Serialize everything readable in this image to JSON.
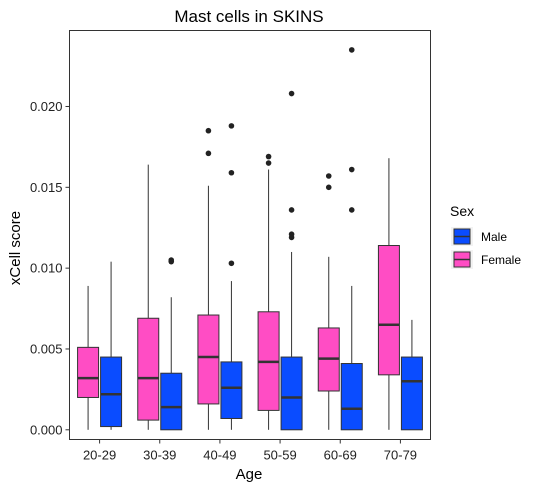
{
  "chart_data": {
    "type": "boxplot",
    "title": "Mast cells in SKINS",
    "xlabel": "Age",
    "ylabel": "xCell score",
    "categories": [
      "20-29",
      "30-39",
      "40-49",
      "50-59",
      "60-69",
      "70-79"
    ],
    "ylim": [
      -0.0006,
      0.0247
    ],
    "yticks": [
      0.0,
      0.005,
      0.01,
      0.015,
      0.02
    ],
    "ytick_labels": [
      "0.000",
      "0.005",
      "0.010",
      "0.015",
      "0.020"
    ],
    "legend": {
      "title": "Sex",
      "position": "right"
    },
    "grid": false,
    "series": [
      {
        "name": "Female",
        "color": "#FF4DC4",
        "boxes": [
          {
            "category": "20-29",
            "min": 0.0,
            "q1": 0.002,
            "median": 0.0032,
            "q3": 0.0051,
            "max": 0.0089,
            "outliers": []
          },
          {
            "category": "30-39",
            "min": 0.0,
            "q1": 0.0006,
            "median": 0.0032,
            "q3": 0.0069,
            "max": 0.0164,
            "outliers": []
          },
          {
            "category": "40-49",
            "min": 0.0,
            "q1": 0.0016,
            "median": 0.0045,
            "q3": 0.0071,
            "max": 0.0151,
            "outliers": [
              0.0171,
              0.0185
            ]
          },
          {
            "category": "50-59",
            "min": 0.0,
            "q1": 0.0012,
            "median": 0.0042,
            "q3": 0.0073,
            "max": 0.0161,
            "outliers": [
              0.0165,
              0.0169
            ]
          },
          {
            "category": "60-69",
            "min": 0.0,
            "q1": 0.0024,
            "median": 0.0044,
            "q3": 0.0063,
            "max": 0.0107,
            "outliers": [
              0.015,
              0.0157
            ]
          },
          {
            "category": "70-79",
            "min": 0.0,
            "q1": 0.0034,
            "median": 0.0065,
            "q3": 0.0114,
            "max": 0.0168,
            "outliers": []
          }
        ]
      },
      {
        "name": "Male",
        "color": "#0A4CFF",
        "boxes": [
          {
            "category": "20-29",
            "min": 0.0,
            "q1": 0.0002,
            "median": 0.0022,
            "q3": 0.0045,
            "max": 0.0104,
            "outliers": []
          },
          {
            "category": "30-39",
            "min": 0.0,
            "q1": 0.0,
            "median": 0.0014,
            "q3": 0.0035,
            "max": 0.0082,
            "outliers": [
              0.0104,
              0.0105
            ]
          },
          {
            "category": "40-49",
            "min": 0.0,
            "q1": 0.0007,
            "median": 0.0026,
            "q3": 0.0042,
            "max": 0.0092,
            "outliers": [
              0.0103,
              0.0159,
              0.0188
            ]
          },
          {
            "category": "50-59",
            "min": 0.0,
            "q1": 0.0,
            "median": 0.002,
            "q3": 0.0045,
            "max": 0.011,
            "outliers": [
              0.0119,
              0.0121,
              0.0136,
              0.0208
            ]
          },
          {
            "category": "60-69",
            "min": 0.0,
            "q1": 0.0,
            "median": 0.0013,
            "q3": 0.0041,
            "max": 0.0089,
            "outliers": [
              0.0136,
              0.0161,
              0.0235
            ]
          },
          {
            "category": "70-79",
            "min": 0.0,
            "q1": 0.0,
            "median": 0.003,
            "q3": 0.0045,
            "max": 0.0068,
            "outliers": []
          }
        ]
      }
    ]
  }
}
